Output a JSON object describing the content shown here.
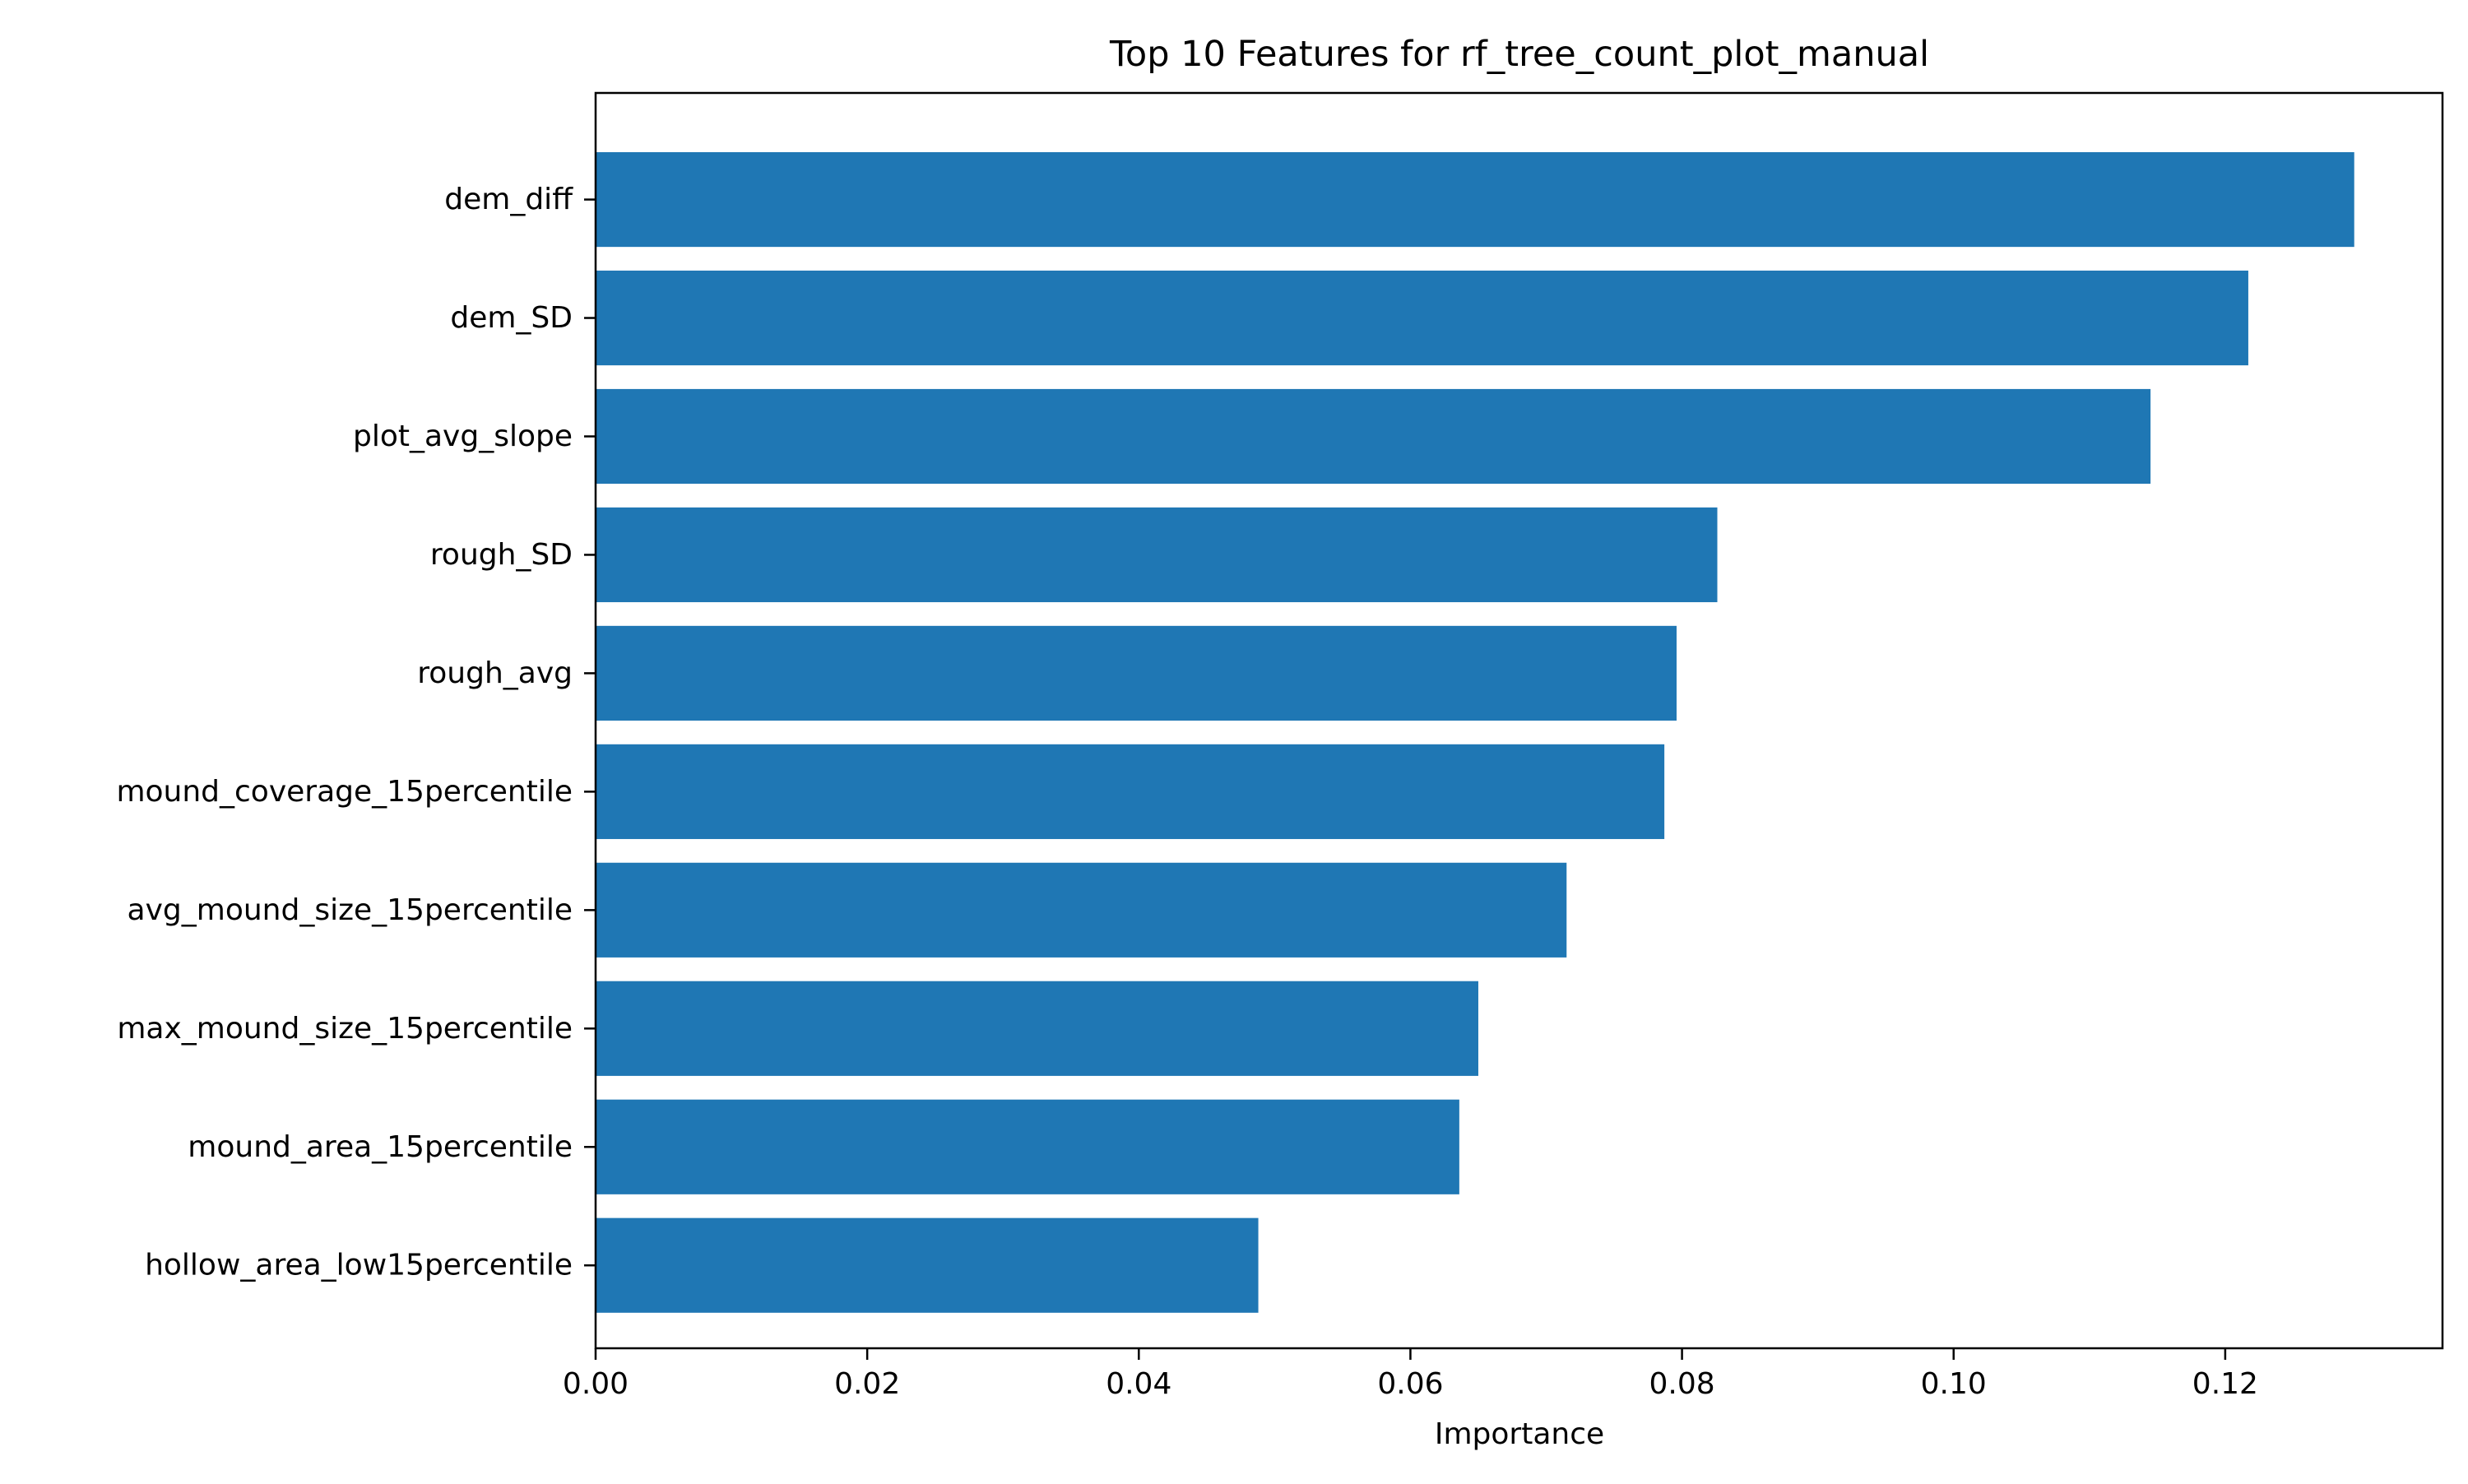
{
  "chart_data": {
    "type": "bar",
    "orientation": "horizontal",
    "title": "Top 10 Features for rf_tree_count_plot_manual",
    "xlabel": "Importance",
    "ylabel": "",
    "xlim": [
      0,
      0.136
    ],
    "xticks": [
      0.0,
      0.02,
      0.04,
      0.06,
      0.08,
      0.1,
      0.12
    ],
    "xtick_labels": [
      "0.00",
      "0.02",
      "0.04",
      "0.06",
      "0.08",
      "0.10",
      "0.12"
    ],
    "grid": false,
    "legend": "none",
    "bar_color": "#1f77b4",
    "categories": [
      "dem_diff",
      "dem_SD",
      "plot_avg_slope",
      "rough_SD",
      "rough_avg",
      "mound_coverage_15percentile",
      "avg_mound_size_15percentile",
      "max_mound_size_15percentile",
      "mound_area_15percentile",
      "hollow_area_low15percentile"
    ],
    "values": [
      0.1295,
      0.1217,
      0.1145,
      0.0826,
      0.0796,
      0.0787,
      0.0715,
      0.065,
      0.0636,
      0.0488
    ]
  }
}
